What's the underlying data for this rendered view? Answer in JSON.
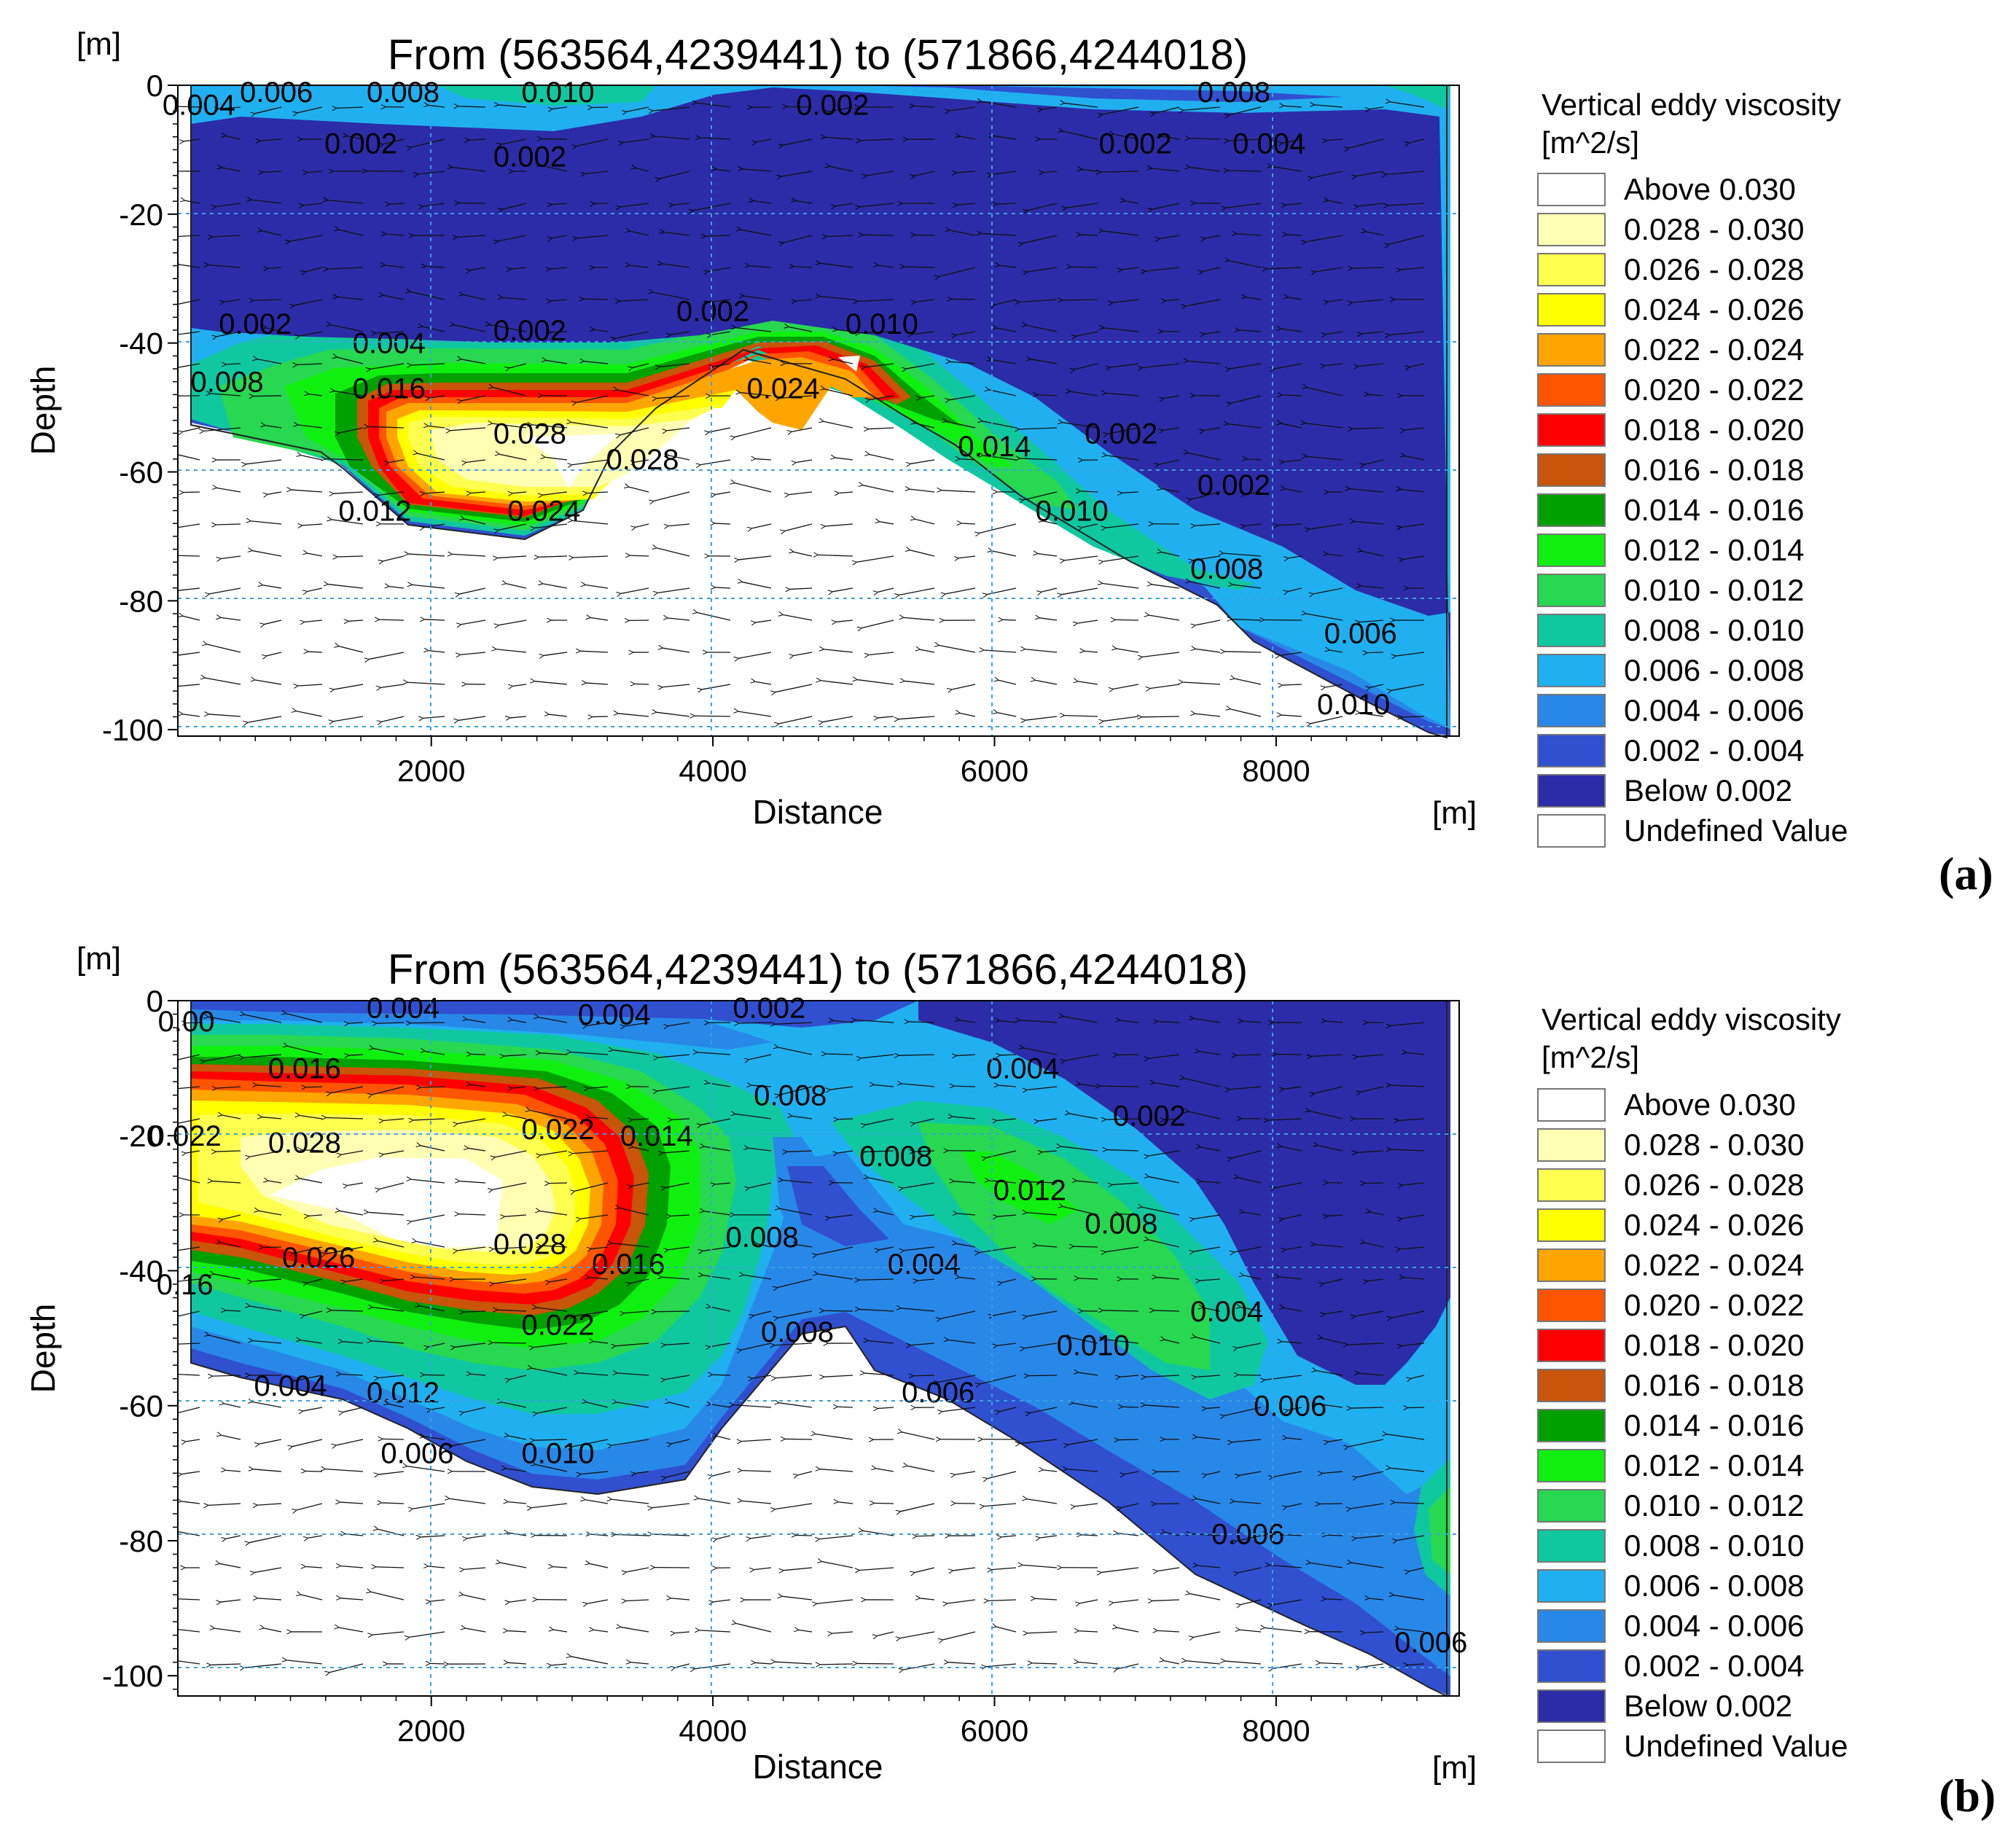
{
  "figure": {
    "panel_labels": [
      "(a)",
      "(b)"
    ]
  },
  "legend": {
    "title": "Vertical eddy viscosity",
    "unit": "[m^2/s]",
    "entries": [
      {
        "label": "Above  0.030",
        "color": "#ffffff"
      },
      {
        "label": "0.028 - 0.030",
        "color": "#ffffb4"
      },
      {
        "label": "0.026 - 0.028",
        "color": "#ffff50"
      },
      {
        "label": "0.024 - 0.026",
        "color": "#ffff00"
      },
      {
        "label": "0.022 - 0.024",
        "color": "#ffa500"
      },
      {
        "label": "0.020 - 0.022",
        "color": "#ff5500"
      },
      {
        "label": "0.018 - 0.020",
        "color": "#ff0000"
      },
      {
        "label": "0.016 - 0.018",
        "color": "#c8550a"
      },
      {
        "label": "0.014 - 0.016",
        "color": "#00a000"
      },
      {
        "label": "0.012 - 0.014",
        "color": "#10f010"
      },
      {
        "label": "0.010 - 0.012",
        "color": "#28d850"
      },
      {
        "label": "0.008 - 0.010",
        "color": "#10c8a0"
      },
      {
        "label": "0.006 - 0.008",
        "color": "#20b0f0"
      },
      {
        "label": "0.004 - 0.006",
        "color": "#2888e8"
      },
      {
        "label": "0.002 - 0.004",
        "color": "#3050d0"
      },
      {
        "label": "Below  0.002",
        "color": "#2c2ca8"
      },
      {
        "label": "Undefined Value",
        "color": "#ffffff"
      }
    ]
  },
  "chart_data": [
    {
      "type": "heatmap",
      "panel": "(a)",
      "title": "From (563564,4239441) to (571866,4244018)",
      "xlabel": "Distance",
      "ylabel": "Depth",
      "x_unit": "[m]",
      "y_unit": "[m]",
      "xlim": [
        200,
        9300
      ],
      "ylim": [
        -101,
        0
      ],
      "xticks": [
        2000,
        4000,
        6000,
        8000
      ],
      "yticks": [
        0,
        -20,
        -40,
        -60,
        -80,
        -100
      ],
      "x_tick_labels": [
        "2000",
        "4000",
        "6000",
        "8000"
      ],
      "y_tick_labels": [
        "0",
        "-20",
        "-40",
        "-60",
        "-80",
        "-100"
      ],
      "variable": "Vertical eddy viscosity [m^2/s]",
      "contour_labels": [
        {
          "text": "0.006",
          "x": 900,
          "y": -1
        },
        {
          "text": "0.008",
          "x": 1800,
          "y": -1
        },
        {
          "text": "0.010",
          "x": 2900,
          "y": -1
        },
        {
          "text": "0.004",
          "x": 350,
          "y": -3
        },
        {
          "text": "0.002",
          "x": 1500,
          "y": -9
        },
        {
          "text": "0.002",
          "x": 2700,
          "y": -11
        },
        {
          "text": "0.002",
          "x": 4850,
          "y": -3
        },
        {
          "text": "0.008",
          "x": 7700,
          "y": -1
        },
        {
          "text": "0.002",
          "x": 7000,
          "y": -9
        },
        {
          "text": "0.004",
          "x": 7950,
          "y": -9
        },
        {
          "text": "0.002",
          "x": 750,
          "y": -37
        },
        {
          "text": "0.002",
          "x": 2700,
          "y": -38
        },
        {
          "text": "0.002",
          "x": 4000,
          "y": -35
        },
        {
          "text": "0.004",
          "x": 1700,
          "y": -40
        },
        {
          "text": "0.010",
          "x": 5200,
          "y": -37
        },
        {
          "text": "0.008",
          "x": 550,
          "y": -46
        },
        {
          "text": "0.016",
          "x": 1700,
          "y": -47
        },
        {
          "text": "0.024",
          "x": 4500,
          "y": -47
        },
        {
          "text": "0.028",
          "x": 2700,
          "y": -54
        },
        {
          "text": "0.028",
          "x": 3500,
          "y": -58
        },
        {
          "text": "0.014",
          "x": 6000,
          "y": -56
        },
        {
          "text": "0.002",
          "x": 6900,
          "y": -54
        },
        {
          "text": "0.002",
          "x": 7700,
          "y": -62
        },
        {
          "text": "0.010",
          "x": 6550,
          "y": -66
        },
        {
          "text": "0.008",
          "x": 7650,
          "y": -75
        },
        {
          "text": "0.012",
          "x": 1600,
          "y": -66
        },
        {
          "text": "0.024",
          "x": 2800,
          "y": -66
        },
        {
          "text": "0.006",
          "x": 8600,
          "y": -85
        },
        {
          "text": "0.010",
          "x": 8550,
          "y": -96
        }
      ]
    },
    {
      "type": "heatmap",
      "panel": "(b)",
      "title": "From (563564,4239441) to (571866,4244018)",
      "xlabel": "Distance",
      "ylabel": "Depth",
      "x_unit": "[m]",
      "y_unit": "[m]",
      "xlim": [
        200,
        9300
      ],
      "ylim": [
        -103,
        0
      ],
      "xticks": [
        2000,
        4000,
        6000,
        8000
      ],
      "yticks": [
        0,
        -20,
        -40,
        -60,
        -80,
        -100
      ],
      "x_tick_labels": [
        "2000",
        "4000",
        "6000",
        "8000"
      ],
      "y_tick_labels": [
        "0",
        "-20",
        "-40",
        "-60",
        "-80",
        "-100"
      ],
      "variable": "Vertical eddy viscosity [m^2/s]",
      "contour_labels": [
        {
          "text": "0.004",
          "x": 1800,
          "y": -1
        },
        {
          "text": "0.004",
          "x": 3300,
          "y": -2
        },
        {
          "text": "0.002",
          "x": 4400,
          "y": -1
        },
        {
          "text": "0.00",
          "x": 260,
          "y": -3
        },
        {
          "text": "0.016",
          "x": 1100,
          "y": -10
        },
        {
          "text": "0.004",
          "x": 6200,
          "y": -10
        },
        {
          "text": "0.008",
          "x": 4550,
          "y": -14
        },
        {
          "text": "0.002",
          "x": 7100,
          "y": -17
        },
        {
          "text": "0.022",
          "x": 250,
          "y": -20
        },
        {
          "text": "0.022",
          "x": 2900,
          "y": -19
        },
        {
          "text": "0.014",
          "x": 3600,
          "y": -20
        },
        {
          "text": "0.028",
          "x": 1100,
          "y": -21
        },
        {
          "text": "0.008",
          "x": 5300,
          "y": -23
        },
        {
          "text": "0.012",
          "x": 6250,
          "y": -28
        },
        {
          "text": "0.008",
          "x": 6900,
          "y": -33
        },
        {
          "text": "0.028",
          "x": 2700,
          "y": -36
        },
        {
          "text": "0.008",
          "x": 4350,
          "y": -35
        },
        {
          "text": "0.016",
          "x": 3400,
          "y": -39
        },
        {
          "text": "0.026",
          "x": 1200,
          "y": -38
        },
        {
          "text": "0.004",
          "x": 5500,
          "y": -39
        },
        {
          "text": "0.16",
          "x": 250,
          "y": -42
        },
        {
          "text": "0.004",
          "x": 7650,
          "y": -46
        },
        {
          "text": "0.022",
          "x": 2900,
          "y": -48
        },
        {
          "text": "0.008",
          "x": 4600,
          "y": -49
        },
        {
          "text": "0.010",
          "x": 6700,
          "y": -51
        },
        {
          "text": "0.004",
          "x": 1000,
          "y": -57
        },
        {
          "text": "0.012",
          "x": 1800,
          "y": -58
        },
        {
          "text": "0.006",
          "x": 5600,
          "y": -58
        },
        {
          "text": "0.006",
          "x": 8100,
          "y": -60
        },
        {
          "text": "0.006",
          "x": 1900,
          "y": -67
        },
        {
          "text": "0.010",
          "x": 2900,
          "y": -67
        },
        {
          "text": "0.006",
          "x": 7800,
          "y": -79
        },
        {
          "text": "0.006",
          "x": 9100,
          "y": -95
        }
      ]
    }
  ]
}
